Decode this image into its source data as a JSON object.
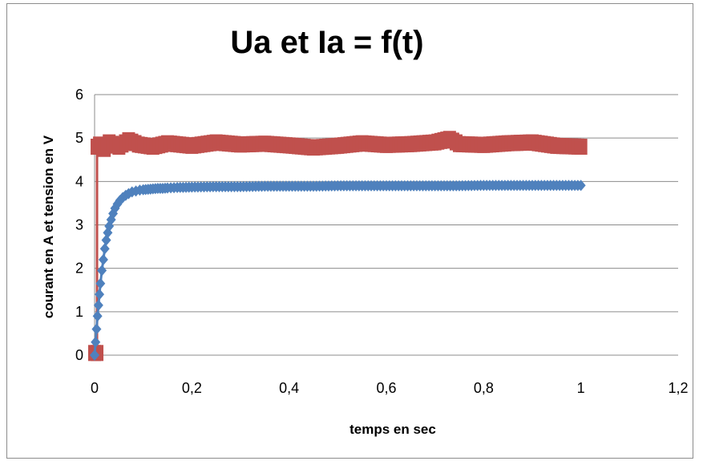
{
  "chart_data": {
    "type": "scatter",
    "title": "Ua et Ia = f(t)",
    "xlabel": "temps en sec",
    "ylabel": "courant en A et tension en V",
    "xlim": [
      0,
      1.2
    ],
    "ylim": [
      0,
      6
    ],
    "xticks": [
      "0",
      "0,2",
      "0,4",
      "0,6",
      "0,8",
      "1",
      "1,2"
    ],
    "yticks": [
      "0",
      "1",
      "2",
      "3",
      "4",
      "5",
      "6"
    ],
    "grid": "horizontal",
    "legend": "none",
    "series": [
      {
        "color": "#4f81bd",
        "marker": "diamond",
        "line": true,
        "x": [
          0,
          0.002,
          0.004,
          0.006,
          0.008,
          0.01,
          0.012,
          0.015,
          0.018,
          0.021,
          0.024,
          0.027,
          0.03,
          0.034,
          0.038,
          0.042,
          0.047,
          0.052,
          0.058,
          0.064,
          0.07,
          0.077,
          0.085,
          0.093,
          0.1,
          0.11,
          0.12,
          0.13,
          0.14,
          0.15,
          0.17,
          0.2,
          0.25,
          0.3,
          0.35,
          0.4,
          0.45,
          0.5,
          0.55,
          0.6,
          0.65,
          0.7,
          0.75,
          0.8,
          0.85,
          0.9,
          0.95,
          1.0
        ],
        "y": [
          0,
          0.3,
          0.6,
          0.9,
          1.15,
          1.4,
          1.65,
          1.95,
          2.2,
          2.45,
          2.65,
          2.82,
          2.97,
          3.12,
          3.26,
          3.38,
          3.48,
          3.56,
          3.63,
          3.68,
          3.72,
          3.76,
          3.78,
          3.8,
          3.81,
          3.82,
          3.83,
          3.84,
          3.84,
          3.85,
          3.86,
          3.87,
          3.88,
          3.88,
          3.89,
          3.89,
          3.89,
          3.9,
          3.9,
          3.9,
          3.9,
          3.9,
          3.9,
          3.91,
          3.91,
          3.91,
          3.91,
          3.91
        ]
      },
      {
        "color": "#c0504d",
        "marker": "square",
        "line": true,
        "x": [
          0,
          0.005,
          0.005,
          0.01,
          0.02,
          0.03,
          0.05,
          0.07,
          0.09,
          0.12,
          0.15,
          0.2,
          0.25,
          0.3,
          0.35,
          0.4,
          0.45,
          0.5,
          0.55,
          0.6,
          0.65,
          0.7,
          0.73,
          0.75,
          0.8,
          0.85,
          0.9,
          0.95,
          1.0
        ],
        "y": [
          0.05,
          0.05,
          4.8,
          4.85,
          4.75,
          4.9,
          4.8,
          4.95,
          4.85,
          4.8,
          4.88,
          4.82,
          4.9,
          4.85,
          4.87,
          4.83,
          4.78,
          4.82,
          4.88,
          4.84,
          4.86,
          4.9,
          4.98,
          4.86,
          4.84,
          4.88,
          4.9,
          4.82,
          4.8
        ]
      }
    ]
  }
}
